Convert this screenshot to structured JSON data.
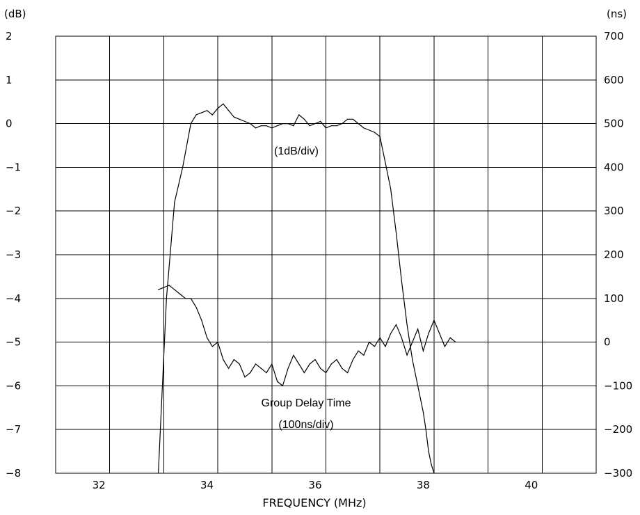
{
  "chart_data": {
    "type": "line",
    "xlabel": "FREQUENCY (MHz)",
    "left_unit": "(dB)",
    "right_unit": "(ns)",
    "xlim": [
      31.2,
      41.2
    ],
    "ylim_left": [
      -8,
      2
    ],
    "ylim_right": [
      -300,
      700
    ],
    "x_ticks": [
      "32",
      "34",
      "36",
      "38",
      "40"
    ],
    "y_ticks_left": [
      "2",
      "1",
      "0",
      "-1",
      "-2",
      "-3",
      "-4",
      "-5",
      "-6",
      "-7",
      "-8"
    ],
    "y_ticks_right": [
      "700",
      "600",
      "500",
      "400",
      "300",
      "200",
      "100",
      "0",
      "-100",
      "-200",
      "-300"
    ],
    "grid": true,
    "annotations": {
      "amplitude_scale": "(1dB/div)",
      "delay_label": "Group Delay Time",
      "delay_scale": "(100ns/div)"
    },
    "series": [
      {
        "axis": "left",
        "x": [
          33.1,
          33.25,
          33.4,
          33.55,
          33.7,
          33.8,
          33.9,
          34.0,
          34.1,
          34.2,
          34.3,
          34.4,
          34.5,
          34.6,
          34.7,
          34.8,
          34.9,
          35.0,
          35.1,
          35.2,
          35.3,
          35.4,
          35.5,
          35.6,
          35.7,
          35.8,
          35.9,
          36.0,
          36.1,
          36.2,
          36.3,
          36.4,
          36.5,
          36.6,
          36.7,
          36.8,
          36.9,
          37.0,
          37.1,
          37.2,
          37.3,
          37.4,
          37.5,
          37.6,
          37.7,
          37.8,
          37.9,
          38.0,
          38.05,
          38.1,
          38.15,
          38.2
        ],
        "values": [
          -8.0,
          -4.0,
          -1.8,
          -1.0,
          0.0,
          0.2,
          0.25,
          0.3,
          0.2,
          0.35,
          0.45,
          0.3,
          0.15,
          0.1,
          0.05,
          0.0,
          -0.1,
          -0.05,
          -0.05,
          -0.1,
          -0.05,
          0.0,
          0.0,
          -0.05,
          0.2,
          0.1,
          -0.05,
          0.0,
          0.05,
          -0.1,
          -0.05,
          -0.05,
          0.0,
          0.1,
          0.1,
          0.0,
          -0.1,
          -0.15,
          -0.2,
          -0.3,
          -0.9,
          -1.5,
          -2.5,
          -3.6,
          -4.6,
          -5.4,
          -6.0,
          -6.6,
          -7.0,
          -7.5,
          -7.8,
          -8.0
        ]
      },
      {
        "axis": "right",
        "x": [
          33.1,
          33.2,
          33.3,
          33.4,
          33.5,
          33.6,
          33.7,
          33.8,
          33.9,
          34.0,
          34.1,
          34.2,
          34.3,
          34.4,
          34.5,
          34.6,
          34.7,
          34.8,
          34.9,
          35.0,
          35.1,
          35.2,
          35.3,
          35.4,
          35.5,
          35.6,
          35.7,
          35.8,
          35.9,
          36.0,
          36.1,
          36.2,
          36.3,
          36.4,
          36.5,
          36.6,
          36.7,
          36.8,
          36.9,
          37.0,
          37.1,
          37.2,
          37.3,
          37.4,
          37.5,
          37.6,
          37.7,
          37.8,
          37.9,
          38.0,
          38.1,
          38.2,
          38.3,
          38.4,
          38.5,
          38.6
        ],
        "values": [
          120,
          125,
          130,
          120,
          110,
          100,
          100,
          80,
          50,
          10,
          -10,
          0,
          -40,
          -60,
          -40,
          -50,
          -80,
          -70,
          -50,
          -60,
          -70,
          -50,
          -90,
          -100,
          -60,
          -30,
          -50,
          -70,
          -50,
          -40,
          -60,
          -70,
          -50,
          -40,
          -60,
          -70,
          -40,
          -20,
          -30,
          0,
          -10,
          10,
          -10,
          20,
          40,
          10,
          -30,
          0,
          30,
          -20,
          20,
          50,
          20,
          -10,
          10,
          0
        ]
      }
    ]
  }
}
